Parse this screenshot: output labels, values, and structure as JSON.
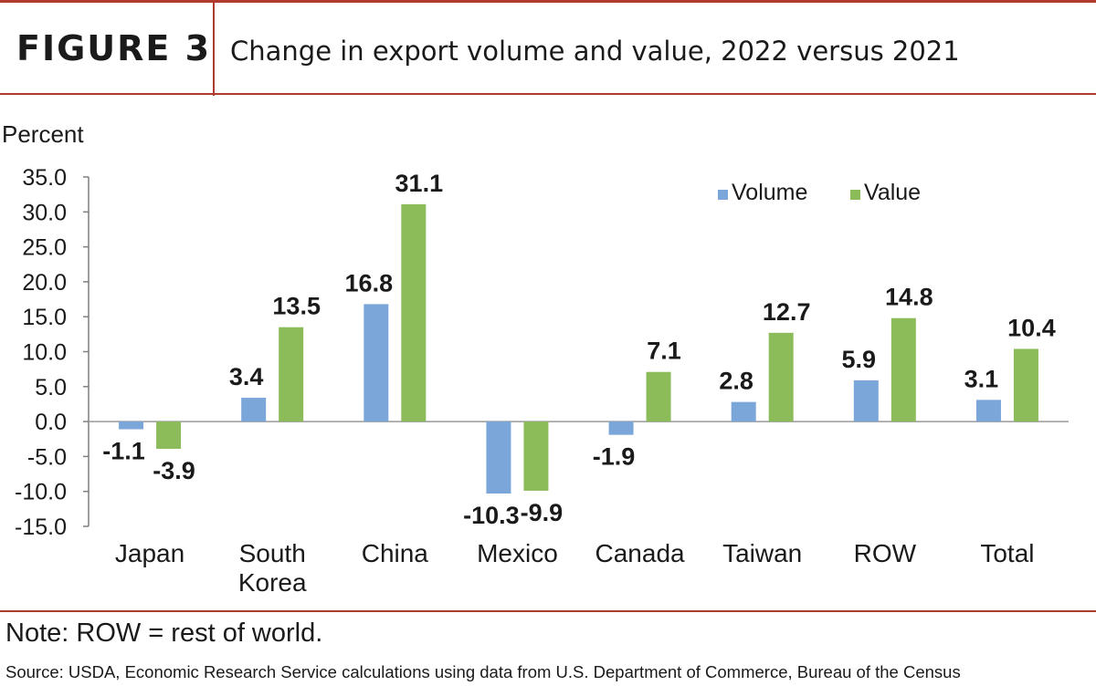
{
  "header": {
    "figure_label": "FIGURE 3",
    "title": "Change in export volume and value, 2022 versus 2021"
  },
  "chart_data": {
    "type": "bar",
    "title": "Change in export volume and value, 2022 versus 2021",
    "ylabel": "Percent",
    "xlabel": "",
    "ylim": [
      -15,
      35
    ],
    "yticks": [
      35,
      30,
      25,
      20,
      15,
      10,
      5,
      0,
      -5,
      -10,
      -15
    ],
    "ytick_labels": [
      "35.0",
      "30.0",
      "25.0",
      "20.0",
      "15.0",
      "10.0",
      "5.0",
      "0.0",
      "-5.0",
      "-10.0",
      "-15.0"
    ],
    "categories": [
      "Japan",
      "South Korea",
      "China",
      "Mexico",
      "Canada",
      "Taiwan",
      "ROW",
      "Total"
    ],
    "series": [
      {
        "name": "Volume",
        "color": "#7aa6da",
        "values": [
          -1.1,
          3.4,
          16.8,
          -10.3,
          -1.9,
          2.8,
          5.9,
          3.1
        ],
        "labels": [
          "-1.1",
          "3.4",
          "16.8",
          "-10.3",
          "-1.9",
          "2.8",
          "5.9",
          "3.1"
        ]
      },
      {
        "name": "Value",
        "color": "#8cbb5a",
        "values": [
          -3.9,
          13.5,
          31.1,
          -9.9,
          7.1,
          12.7,
          14.8,
          10.4
        ],
        "labels": [
          "-3.9",
          "13.5",
          "31.1",
          "-9.9",
          "7.1",
          "12.7",
          "14.8",
          "10.4"
        ]
      }
    ],
    "legend_position": "top-right",
    "grid": false
  },
  "footer": {
    "note": "Note: ROW = rest of world.",
    "source": "Source: USDA, Economic Research Service calculations using data from U.S. Department of Commerce, Bureau of the Census"
  }
}
